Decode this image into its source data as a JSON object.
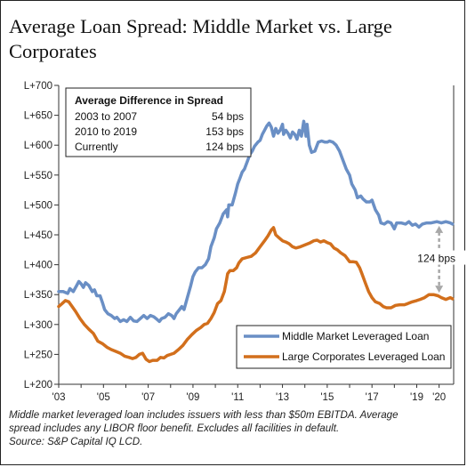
{
  "title": "Average Loan Spread: Middle Market vs. Large Corporates",
  "footnote_lines": [
    "Middle market leveraged loan includes issuers with less than $50m EBITDA. Average",
    "spread includes any LIBOR floor benefit. Excludes all facilities in default.",
    "Source: S&P Capital IQ LCD."
  ],
  "colors": {
    "middle_market": "#6a8fc5",
    "large_corporates": "#d26f1c",
    "annotation_arrow": "#a8a8a8"
  },
  "chart_data": {
    "type": "line",
    "title": "Average Loan Spread: Middle Market vs. Large Corporates",
    "xlabel": "",
    "ylabel": "",
    "xlim": [
      2003.0,
      2020.65
    ],
    "ylim": [
      200,
      700
    ],
    "x_tick_values": [
      2003,
      2005,
      2007,
      2009,
      2011,
      2013,
      2015,
      2017,
      2019
    ],
    "x_tick_labels": [
      "'03",
      "'05",
      "'07",
      "'09",
      "'11",
      "'13",
      "'15",
      "'17",
      "'19"
    ],
    "x_tick_values_extra": [
      2020
    ],
    "x_tick_labels_extra": [
      "'20"
    ],
    "y_tick_values": [
      200,
      250,
      300,
      350,
      400,
      450,
      500,
      550,
      600,
      650,
      700
    ],
    "y_tick_labels": [
      "L+200",
      "L+250",
      "L+300",
      "L+350",
      "L+400",
      "L+450",
      "L+500",
      "L+550",
      "L+600",
      "L+650",
      "L+700"
    ],
    "grid": false,
    "legend_position": "bottom-right",
    "series": [
      {
        "name": "Middle Market Leveraged Loan",
        "points": [
          [
            2003.0,
            355
          ],
          [
            2003.2,
            355
          ],
          [
            2003.4,
            352
          ],
          [
            2003.5,
            360
          ],
          [
            2003.65,
            355
          ],
          [
            2003.8,
            365
          ],
          [
            2003.9,
            372
          ],
          [
            2004.0,
            368
          ],
          [
            2004.1,
            362
          ],
          [
            2004.2,
            370
          ],
          [
            2004.35,
            365
          ],
          [
            2004.5,
            355
          ],
          [
            2004.6,
            358
          ],
          [
            2004.7,
            348
          ],
          [
            2004.85,
            348
          ],
          [
            2004.95,
            337
          ],
          [
            2005.05,
            325
          ],
          [
            2005.2,
            318
          ],
          [
            2005.35,
            315
          ],
          [
            2005.5,
            310
          ],
          [
            2005.6,
            312
          ],
          [
            2005.75,
            305
          ],
          [
            2005.9,
            308
          ],
          [
            2006.05,
            305
          ],
          [
            2006.2,
            312
          ],
          [
            2006.35,
            306
          ],
          [
            2006.5,
            305
          ],
          [
            2006.65,
            310
          ],
          [
            2006.8,
            315
          ],
          [
            2006.95,
            310
          ],
          [
            2007.1,
            315
          ],
          [
            2007.25,
            313
          ],
          [
            2007.35,
            310
          ],
          [
            2007.5,
            305
          ],
          [
            2007.6,
            310
          ],
          [
            2007.75,
            312
          ],
          [
            2007.9,
            318
          ],
          [
            2008.05,
            315
          ],
          [
            2008.15,
            310
          ],
          [
            2008.25,
            318
          ],
          [
            2008.4,
            325
          ],
          [
            2008.5,
            330
          ],
          [
            2008.6,
            325
          ],
          [
            2008.75,
            345
          ],
          [
            2008.9,
            365
          ],
          [
            2009.0,
            380
          ],
          [
            2009.1,
            388
          ],
          [
            2009.25,
            395
          ],
          [
            2009.4,
            395
          ],
          [
            2009.55,
            400
          ],
          [
            2009.7,
            410
          ],
          [
            2009.8,
            430
          ],
          [
            2009.95,
            445
          ],
          [
            2010.05,
            460
          ],
          [
            2010.2,
            470
          ],
          [
            2010.35,
            485
          ],
          [
            2010.5,
            492
          ],
          [
            2010.55,
            480
          ],
          [
            2010.6,
            500
          ],
          [
            2010.75,
            500
          ],
          [
            2010.9,
            520
          ],
          [
            2011.0,
            535
          ],
          [
            2011.1,
            545
          ],
          [
            2011.2,
            555
          ],
          [
            2011.3,
            560
          ],
          [
            2011.45,
            575
          ],
          [
            2011.55,
            585
          ],
          [
            2011.65,
            590
          ],
          [
            2011.75,
            598
          ],
          [
            2011.9,
            605
          ],
          [
            2012.0,
            608
          ],
          [
            2012.1,
            618
          ],
          [
            2012.2,
            625
          ],
          [
            2012.3,
            632
          ],
          [
            2012.4,
            637
          ],
          [
            2012.5,
            630
          ],
          [
            2012.6,
            615
          ],
          [
            2012.7,
            628
          ],
          [
            2012.8,
            620
          ],
          [
            2012.9,
            625
          ],
          [
            2013.0,
            635
          ],
          [
            2013.05,
            618
          ],
          [
            2013.15,
            625
          ],
          [
            2013.25,
            620
          ],
          [
            2013.35,
            612
          ],
          [
            2013.45,
            622
          ],
          [
            2013.55,
            618
          ],
          [
            2013.65,
            610
          ],
          [
            2013.75,
            625
          ],
          [
            2013.85,
            615
          ],
          [
            2013.95,
            640
          ],
          [
            2014.05,
            615
          ],
          [
            2014.1,
            635
          ],
          [
            2014.2,
            600
          ],
          [
            2014.3,
            588
          ],
          [
            2014.45,
            590
          ],
          [
            2014.6,
            605
          ],
          [
            2014.75,
            607
          ],
          [
            2014.9,
            605
          ],
          [
            2015.0,
            605
          ],
          [
            2015.1,
            607
          ],
          [
            2015.25,
            605
          ],
          [
            2015.4,
            600
          ],
          [
            2015.55,
            590
          ],
          [
            2015.7,
            575
          ],
          [
            2015.85,
            560
          ],
          [
            2016.0,
            550
          ],
          [
            2016.1,
            535
          ],
          [
            2016.25,
            525
          ],
          [
            2016.35,
            512
          ],
          [
            2016.5,
            515
          ],
          [
            2016.6,
            510
          ],
          [
            2016.75,
            505
          ],
          [
            2016.9,
            505
          ],
          [
            2017.0,
            508
          ],
          [
            2017.15,
            492
          ],
          [
            2017.3,
            483
          ],
          [
            2017.4,
            470
          ],
          [
            2017.55,
            468
          ],
          [
            2017.7,
            472
          ],
          [
            2017.85,
            470
          ],
          [
            2018.0,
            460
          ],
          [
            2018.1,
            470
          ],
          [
            2018.3,
            470
          ],
          [
            2018.5,
            468
          ],
          [
            2018.65,
            472
          ],
          [
            2018.8,
            466
          ],
          [
            2018.95,
            468
          ],
          [
            2019.1,
            463
          ],
          [
            2019.25,
            468
          ],
          [
            2019.45,
            470
          ],
          [
            2019.65,
            470
          ],
          [
            2019.9,
            472
          ],
          [
            2020.1,
            470
          ],
          [
            2020.3,
            472
          ],
          [
            2020.5,
            470
          ],
          [
            2020.6,
            468
          ]
        ]
      },
      {
        "name": "Large Corporates Leveraged Loan",
        "points": [
          [
            2003.0,
            330
          ],
          [
            2003.15,
            335
          ],
          [
            2003.3,
            340
          ],
          [
            2003.45,
            338
          ],
          [
            2003.6,
            330
          ],
          [
            2003.75,
            322
          ],
          [
            2003.95,
            310
          ],
          [
            2004.15,
            300
          ],
          [
            2004.35,
            292
          ],
          [
            2004.55,
            285
          ],
          [
            2004.75,
            272
          ],
          [
            2004.95,
            268
          ],
          [
            2005.15,
            262
          ],
          [
            2005.35,
            258
          ],
          [
            2005.55,
            255
          ],
          [
            2005.75,
            252
          ],
          [
            2005.95,
            247
          ],
          [
            2006.15,
            245
          ],
          [
            2006.3,
            243
          ],
          [
            2006.45,
            245
          ],
          [
            2006.6,
            250
          ],
          [
            2006.75,
            252
          ],
          [
            2006.9,
            242
          ],
          [
            2007.05,
            238
          ],
          [
            2007.2,
            240
          ],
          [
            2007.4,
            240
          ],
          [
            2007.55,
            245
          ],
          [
            2007.7,
            244
          ],
          [
            2007.85,
            248
          ],
          [
            2008.0,
            250
          ],
          [
            2008.15,
            252
          ],
          [
            2008.35,
            258
          ],
          [
            2008.55,
            265
          ],
          [
            2008.75,
            275
          ],
          [
            2008.95,
            283
          ],
          [
            2009.15,
            290
          ],
          [
            2009.35,
            295
          ],
          [
            2009.5,
            300
          ],
          [
            2009.65,
            302
          ],
          [
            2009.8,
            310
          ],
          [
            2009.95,
            320
          ],
          [
            2010.1,
            335
          ],
          [
            2010.25,
            340
          ],
          [
            2010.4,
            355
          ],
          [
            2010.5,
            375
          ],
          [
            2010.55,
            385
          ],
          [
            2010.65,
            390
          ],
          [
            2010.8,
            390
          ],
          [
            2010.95,
            395
          ],
          [
            2011.05,
            403
          ],
          [
            2011.2,
            410
          ],
          [
            2011.4,
            412
          ],
          [
            2011.6,
            414
          ],
          [
            2011.8,
            420
          ],
          [
            2012.0,
            430
          ],
          [
            2012.2,
            440
          ],
          [
            2012.35,
            448
          ],
          [
            2012.5,
            458
          ],
          [
            2012.6,
            462
          ],
          [
            2012.7,
            450
          ],
          [
            2012.85,
            445
          ],
          [
            2013.0,
            440
          ],
          [
            2013.15,
            438
          ],
          [
            2013.3,
            435
          ],
          [
            2013.45,
            430
          ],
          [
            2013.6,
            428
          ],
          [
            2013.8,
            430
          ],
          [
            2014.0,
            433
          ],
          [
            2014.2,
            436
          ],
          [
            2014.4,
            440
          ],
          [
            2014.55,
            441
          ],
          [
            2014.7,
            438
          ],
          [
            2014.85,
            440
          ],
          [
            2015.0,
            437
          ],
          [
            2015.15,
            435
          ],
          [
            2015.3,
            428
          ],
          [
            2015.45,
            425
          ],
          [
            2015.6,
            420
          ],
          [
            2015.8,
            415
          ],
          [
            2016.0,
            405
          ],
          [
            2016.15,
            405
          ],
          [
            2016.3,
            404
          ],
          [
            2016.45,
            395
          ],
          [
            2016.55,
            385
          ],
          [
            2016.7,
            370
          ],
          [
            2016.85,
            355
          ],
          [
            2017.0,
            345
          ],
          [
            2017.15,
            338
          ],
          [
            2017.35,
            335
          ],
          [
            2017.5,
            330
          ],
          [
            2017.65,
            328
          ],
          [
            2017.85,
            328
          ],
          [
            2018.05,
            332
          ],
          [
            2018.25,
            333
          ],
          [
            2018.45,
            333
          ],
          [
            2018.6,
            335
          ],
          [
            2018.8,
            338
          ],
          [
            2019.0,
            340
          ],
          [
            2019.15,
            342
          ],
          [
            2019.35,
            345
          ],
          [
            2019.55,
            350
          ],
          [
            2019.75,
            350
          ],
          [
            2019.95,
            348
          ],
          [
            2020.1,
            345
          ],
          [
            2020.3,
            342
          ],
          [
            2020.5,
            345
          ],
          [
            2020.6,
            343
          ]
        ]
      }
    ],
    "inset_table": {
      "header": "Average Difference in Spread",
      "rows": [
        {
          "label": "2003 to 2007",
          "value": "54 bps"
        },
        {
          "label": "2010 to 2019",
          "value": "153 bps"
        },
        {
          "label": "Currently",
          "value": "124 bps"
        }
      ]
    },
    "annotation": {
      "label": "124 bps",
      "x": 2020.0,
      "y_from": 465,
      "y_to": 353
    }
  }
}
